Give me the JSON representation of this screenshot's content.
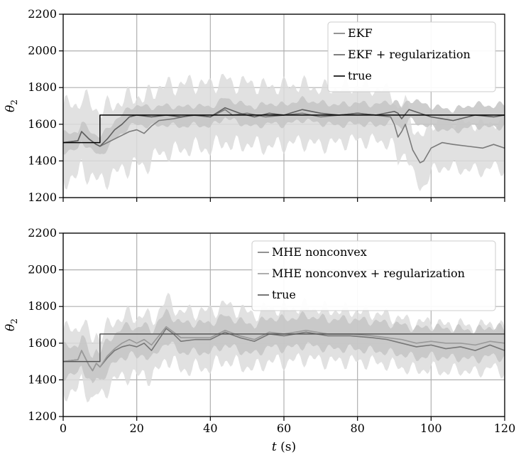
{
  "chart_data": [
    {
      "type": "line",
      "ylabel": "θ2",
      "xlabel": "",
      "xlim": [
        0,
        120
      ],
      "ylim": [
        1200,
        2200
      ],
      "xticks": [
        0,
        20,
        40,
        60,
        80,
        100,
        120
      ],
      "yticks": [
        1200,
        1400,
        1600,
        1800,
        2000,
        2200
      ],
      "grid": true,
      "legend_position": "top-right",
      "series": [
        {
          "name": "EKF",
          "color": "#7a7a7a",
          "x": [
            0,
            4,
            5,
            7,
            9,
            10,
            12,
            14,
            16,
            18,
            20,
            22,
            24,
            26,
            30,
            35,
            40,
            44,
            46,
            50,
            55,
            60,
            65,
            70,
            75,
            80,
            85,
            89,
            90,
            91,
            92,
            93,
            95,
            97,
            98,
            100,
            103,
            106,
            110,
            114,
            117,
            120
          ],
          "y": [
            1500,
            1510,
            1560,
            1520,
            1490,
            1480,
            1500,
            1520,
            1540,
            1560,
            1570,
            1550,
            1590,
            1620,
            1630,
            1650,
            1640,
            1680,
            1650,
            1660,
            1640,
            1650,
            1660,
            1640,
            1650,
            1660,
            1650,
            1640,
            1600,
            1530,
            1560,
            1600,
            1460,
            1390,
            1400,
            1470,
            1500,
            1490,
            1480,
            1470,
            1490,
            1470
          ],
          "band": [
            200,
            120
          ]
        },
        {
          "name": "EKF + regularization",
          "color": "#5f5f5f",
          "x": [
            0,
            4,
            5,
            7,
            9,
            10,
            12,
            14,
            16,
            18,
            20,
            24,
            28,
            32,
            36,
            40,
            44,
            48,
            52,
            56,
            60,
            65,
            70,
            75,
            80,
            85,
            90,
            91,
            92,
            94,
            100,
            106,
            112,
            117,
            120
          ],
          "y": [
            1500,
            1510,
            1560,
            1520,
            1490,
            1480,
            1520,
            1570,
            1600,
            1640,
            1650,
            1640,
            1650,
            1640,
            1650,
            1640,
            1690,
            1660,
            1640,
            1660,
            1650,
            1680,
            1660,
            1650,
            1660,
            1650,
            1670,
            1660,
            1630,
            1680,
            1640,
            1620,
            1650,
            1640,
            1650
          ],
          "band": [
            50,
            60
          ]
        },
        {
          "name": "true",
          "color": "#000000",
          "x": [
            0,
            10,
            10,
            120
          ],
          "y": [
            1500,
            1500,
            1650,
            1650
          ]
        }
      ]
    },
    {
      "type": "line",
      "ylabel": "θ2",
      "xlabel": "t (s)",
      "xlim": [
        0,
        120
      ],
      "ylim": [
        1200,
        2200
      ],
      "xticks": [
        0,
        20,
        40,
        60,
        80,
        100,
        120
      ],
      "yticks": [
        1200,
        1400,
        1600,
        1800,
        2000,
        2200
      ],
      "grid": true,
      "legend_position": "top-right",
      "series": [
        {
          "name": "MHE nonconvex",
          "color": "#777777",
          "x": [
            0,
            4,
            5,
            7,
            8,
            9,
            10,
            12,
            14,
            16,
            18,
            20,
            22,
            24,
            26,
            28,
            30,
            32,
            36,
            40,
            44,
            48,
            52,
            56,
            60,
            66,
            72,
            78,
            84,
            88,
            92,
            96,
            100,
            104,
            108,
            112,
            116,
            120
          ],
          "y": [
            1500,
            1510,
            1560,
            1480,
            1450,
            1490,
            1470,
            1520,
            1560,
            1580,
            1590,
            1580,
            1600,
            1560,
            1620,
            1680,
            1650,
            1610,
            1620,
            1620,
            1660,
            1630,
            1610,
            1650,
            1640,
            1660,
            1640,
            1640,
            1630,
            1620,
            1600,
            1580,
            1590,
            1570,
            1580,
            1560,
            1590,
            1560
          ],
          "band": [
            170,
            120
          ]
        },
        {
          "name": "MHE nonconvex + regularization",
          "color": "#9a9a9a",
          "x": [
            0,
            4,
            5,
            7,
            8,
            9,
            10,
            12,
            14,
            16,
            18,
            20,
            22,
            24,
            26,
            28,
            30,
            32,
            36,
            40,
            44,
            48,
            52,
            56,
            60,
            66,
            72,
            78,
            84,
            88,
            92,
            96,
            100,
            104,
            108,
            112,
            116,
            120
          ],
          "y": [
            1500,
            1510,
            1560,
            1480,
            1450,
            1490,
            1470,
            1530,
            1570,
            1600,
            1620,
            1600,
            1620,
            1590,
            1640,
            1690,
            1660,
            1630,
            1630,
            1630,
            1670,
            1640,
            1620,
            1660,
            1650,
            1670,
            1650,
            1650,
            1640,
            1630,
            1620,
            1600,
            1610,
            1600,
            1600,
            1590,
            1610,
            1600
          ],
          "band": [
            80,
            80
          ]
        },
        {
          "name": "true",
          "color": "#555555",
          "x": [
            0,
            10,
            10,
            120
          ],
          "y": [
            1500,
            1500,
            1650,
            1650
          ]
        }
      ]
    }
  ]
}
